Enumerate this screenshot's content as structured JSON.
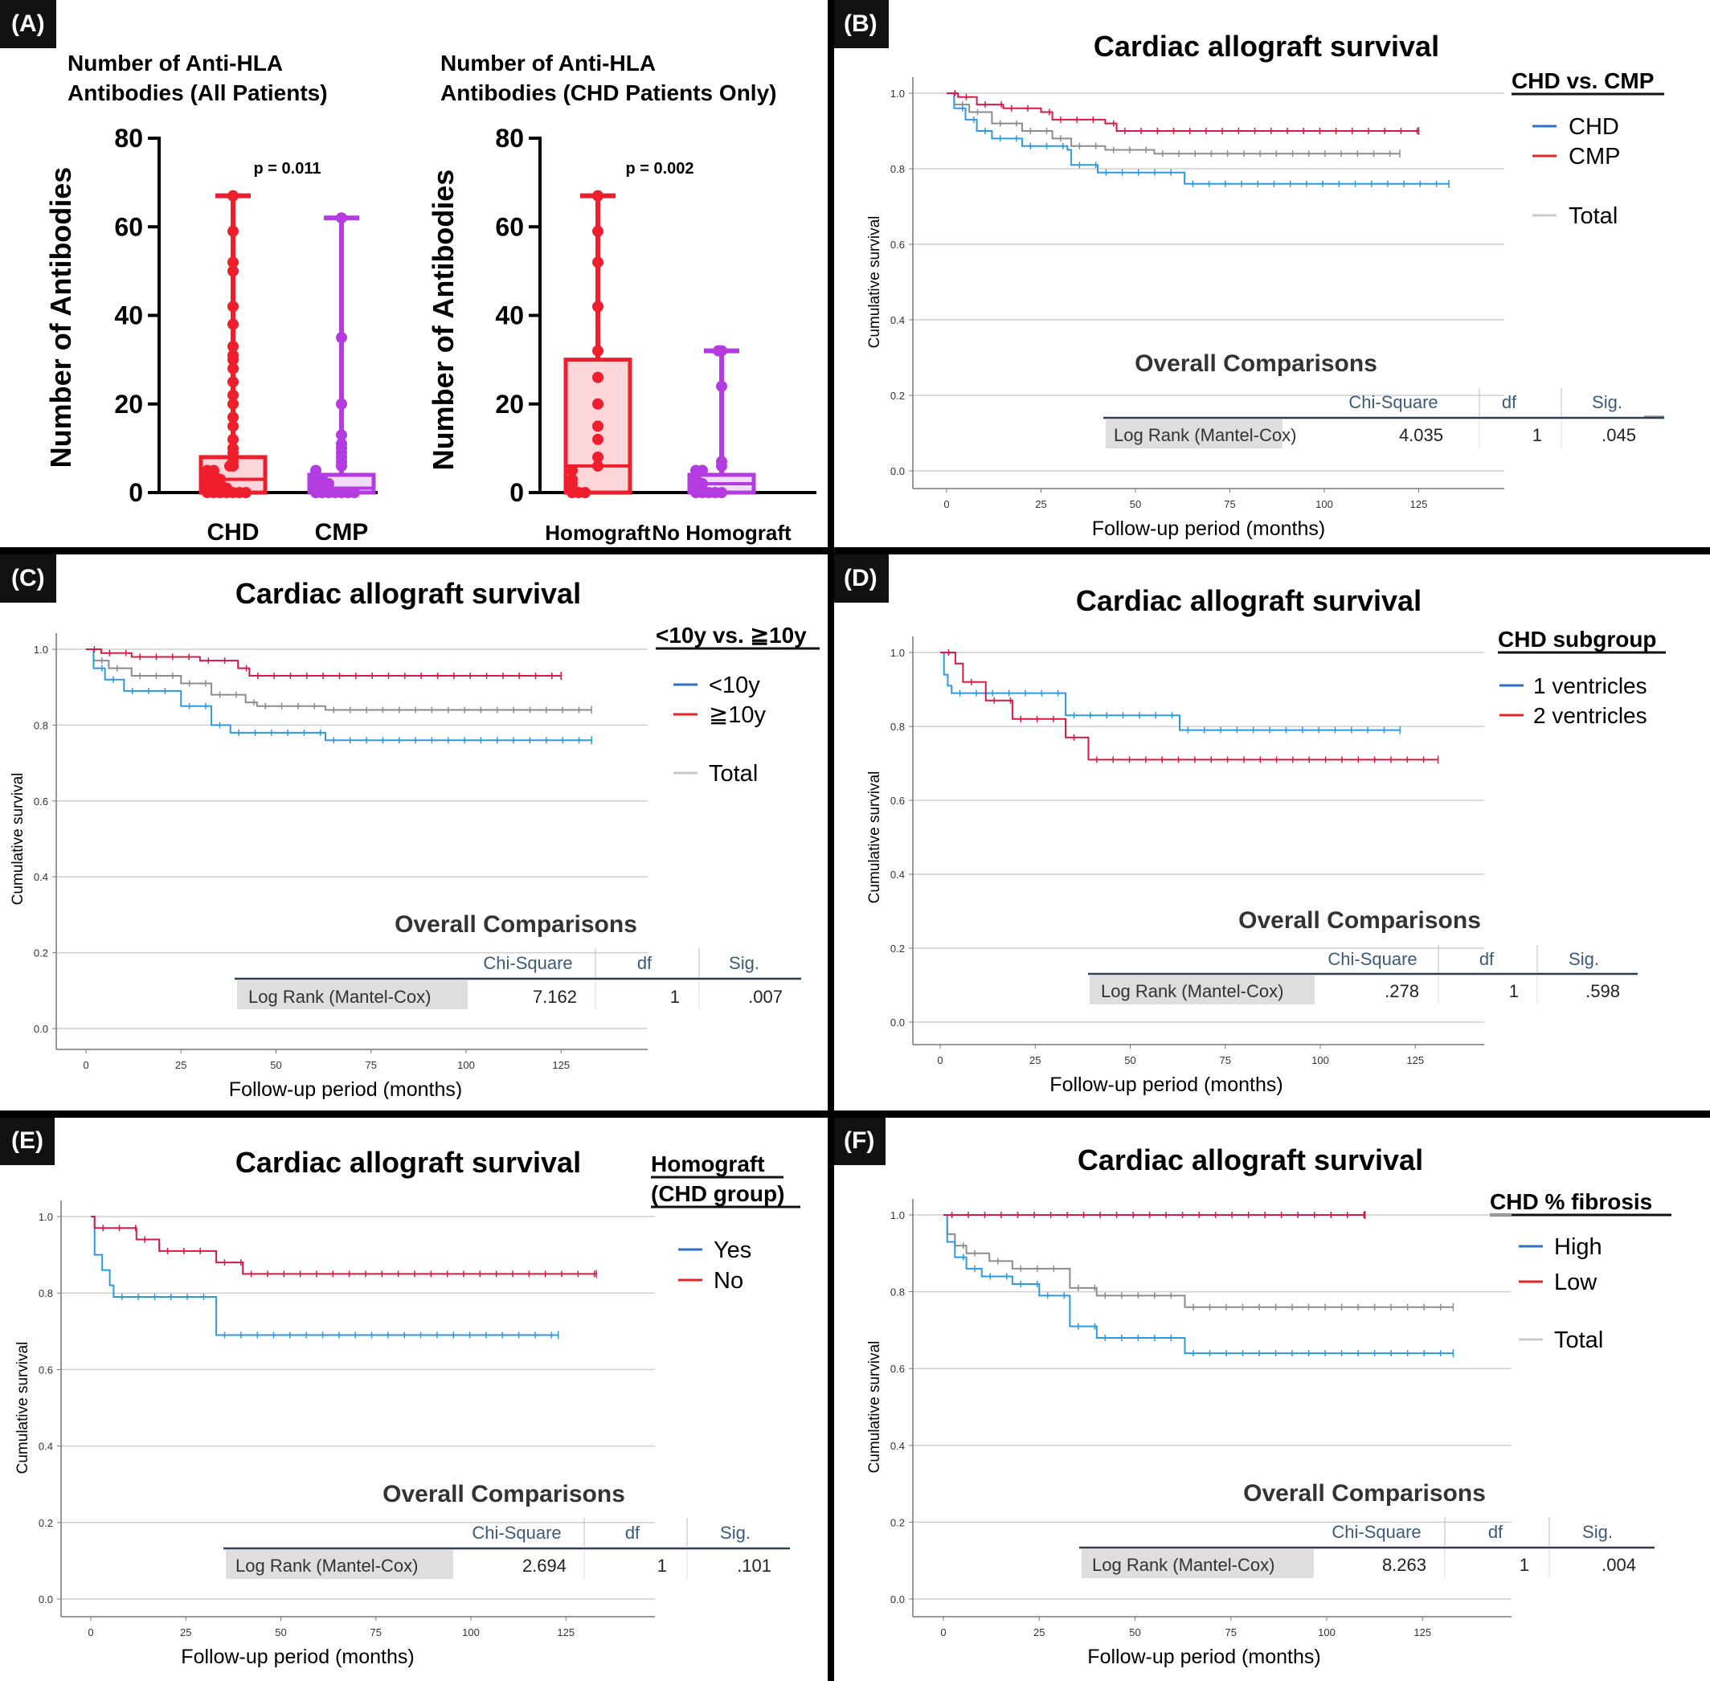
{
  "panel_a": {
    "label": "(A)",
    "left_title_line1": "Number of  Anti-HLA",
    "left_title_line2": "Antibodies (All Patients)",
    "right_title_line1": "Number of  Anti-HLA",
    "right_title_line2": "Antibodies (CHD Patients Only)",
    "ylabel": "Number of  Antibodies",
    "yticks": [
      "0",
      "20",
      "40",
      "60",
      "80"
    ]
  },
  "panel_b": {
    "label": "(B)",
    "title": "Cardiac allograft survival",
    "legend_title": "CHD vs. CMP",
    "legend": [
      "CHD",
      "CMP",
      "Total"
    ],
    "table_title": "Overall Comparisons",
    "table_headers": [
      "Chi-Square",
      "df",
      "Sig."
    ],
    "table_row": [
      "Log Rank (Mantel-Cox)",
      "4.035",
      "1",
      ".045"
    ]
  },
  "panel_c": {
    "label": "(C)",
    "title": "Cardiac allograft survival",
    "legend_title": "<10y vs. ≧10y",
    "legend": [
      "<10y",
      "≧10y",
      "Total"
    ],
    "table_title": "Overall Comparisons",
    "table_headers": [
      "Chi-Square",
      "df",
      "Sig."
    ],
    "table_row": [
      "Log Rank (Mantel-Cox)",
      "7.162",
      "1",
      ".007"
    ]
  },
  "panel_d": {
    "label": "(D)",
    "title": "Cardiac allograft survival",
    "legend_title": "CHD subgroup",
    "legend": [
      "1 ventricles",
      "2 ventricles"
    ],
    "table_title": "Overall Comparisons",
    "table_headers": [
      "Chi-Square",
      "df",
      "Sig."
    ],
    "table_row": [
      "Log Rank (Mantel-Cox)",
      ".278",
      "1",
      ".598"
    ]
  },
  "panel_e": {
    "label": "(E)",
    "title": "Cardiac allograft survival",
    "legend_title_line1": "Homograft",
    "legend_title_line2": "(CHD group)",
    "legend": [
      "Yes",
      "No"
    ],
    "table_title": "Overall Comparisons",
    "table_headers": [
      "Chi-Square",
      "df",
      "Sig."
    ],
    "table_row": [
      "Log Rank (Mantel-Cox)",
      "2.694",
      "1",
      ".101"
    ]
  },
  "panel_f": {
    "label": "(F)",
    "title": "Cardiac allograft survival",
    "legend_title": "CHD % fibrosis",
    "legend": [
      "High",
      "Low",
      "Total"
    ],
    "table_title": "Overall Comparisons",
    "table_headers": [
      "Chi-Square",
      "df",
      "Sig."
    ],
    "table_row": [
      "Log Rank (Mantel-Cox)",
      "8.263",
      "1",
      ".004"
    ]
  },
  "km_axes": {
    "ylabel": "Cumulative survival",
    "xlabel": "Follow-up period (months)",
    "yticks": [
      "0.0",
      "0.2",
      "0.4",
      "0.6",
      "0.8",
      "1.0"
    ],
    "xticks": [
      "0",
      "25",
      "50",
      "75",
      "100",
      "125"
    ]
  },
  "colors": {
    "red": "#ef1e2d",
    "purple": "#b43be0",
    "km_blue": "#2d9ae0",
    "km_red": "#d41a45",
    "km_gray": "#8c8c8c",
    "legend_blue": "#2d6fc9",
    "legend_red": "#e52424",
    "legend_gray": "#c9c9c9",
    "table_header_text": "#3d5a7a",
    "table_row_shade": "#dedede"
  },
  "chart_data": [
    {
      "type": "scatter",
      "panel": "A-left",
      "ylabel": "Number of  Antibodies",
      "ylim": [
        0,
        80
      ],
      "categories": [
        "CHD",
        "CMP"
      ],
      "annotation": "p = 0.011",
      "series": [
        {
          "name": "CHD",
          "values": [
            67,
            59,
            52,
            50,
            42,
            38,
            33,
            31,
            30,
            28,
            25,
            22,
            20,
            17,
            15,
            12,
            10,
            9,
            8,
            7,
            6,
            6,
            5,
            5,
            4,
            4,
            3,
            3,
            3,
            2,
            2,
            2,
            1,
            1,
            1,
            1,
            0,
            0,
            0,
            0,
            0,
            0,
            0
          ],
          "box": {
            "q1": 0,
            "median": 3,
            "q3": 8,
            "min": 0,
            "max": 67
          }
        },
        {
          "name": "CMP",
          "values": [
            62,
            35,
            20,
            13,
            11,
            10,
            9,
            8,
            7,
            6,
            5,
            4,
            3,
            3,
            2,
            2,
            2,
            1,
            1,
            1,
            0,
            0,
            0,
            0,
            0,
            0,
            0
          ],
          "box": {
            "q1": 0,
            "median": 1,
            "q3": 4,
            "min": 0,
            "max": 62
          }
        }
      ]
    },
    {
      "type": "scatter",
      "panel": "A-right",
      "ylabel": "Number of  Antibodies",
      "ylim": [
        0,
        80
      ],
      "categories": [
        "Homograft",
        "No Homograft"
      ],
      "annotation": "p = 0.002",
      "series": [
        {
          "name": "Homograft",
          "values": [
            67,
            59,
            52,
            42,
            32,
            26,
            20,
            15,
            12,
            8,
            6,
            5,
            3,
            2,
            1,
            0,
            0,
            0
          ],
          "box": {
            "q1": 0,
            "median": 6,
            "q3": 30,
            "min": 0,
            "max": 67
          }
        },
        {
          "name": "No Homograft",
          "values": [
            32,
            32,
            24,
            7,
            6,
            5,
            5,
            4,
            3,
            2,
            2,
            1,
            0,
            0,
            0,
            0,
            0
          ],
          "box": {
            "q1": 0,
            "median": 2,
            "q3": 4,
            "min": 0,
            "max": 32
          }
        }
      ]
    },
    {
      "type": "line",
      "panel": "B",
      "xlim": [
        0,
        150
      ],
      "ylim": [
        0,
        1
      ],
      "series": [
        {
          "name": "CHD",
          "steps": [
            [
              0,
              1.0
            ],
            [
              2,
              0.96
            ],
            [
              5,
              0.93
            ],
            [
              8,
              0.9
            ],
            [
              12,
              0.88
            ],
            [
              20,
              0.86
            ],
            [
              32,
              0.85
            ],
            [
              33,
              0.81
            ],
            [
              40,
              0.79
            ],
            [
              63,
              0.76
            ],
            [
              133,
              0.76
            ]
          ]
        },
        {
          "name": "CMP",
          "steps": [
            [
              0,
              1.0
            ],
            [
              3,
              0.99
            ],
            [
              8,
              0.97
            ],
            [
              15,
              0.96
            ],
            [
              25,
              0.95
            ],
            [
              28,
              0.93
            ],
            [
              42,
              0.92
            ],
            [
              45,
              0.9
            ],
            [
              125,
              0.9
            ]
          ]
        },
        {
          "name": "Total",
          "steps": [
            [
              0,
              1.0
            ],
            [
              2,
              0.97
            ],
            [
              6,
              0.95
            ],
            [
              12,
              0.92
            ],
            [
              20,
              0.9
            ],
            [
              28,
              0.88
            ],
            [
              33,
              0.86
            ],
            [
              42,
              0.85
            ],
            [
              55,
              0.84
            ],
            [
              120,
              0.84
            ]
          ]
        }
      ]
    },
    {
      "type": "line",
      "panel": "C",
      "xlim": [
        0,
        150
      ],
      "ylim": [
        0,
        1
      ],
      "series": [
        {
          "name": "<10y",
          "steps": [
            [
              0,
              1.0
            ],
            [
              2,
              0.95
            ],
            [
              5,
              0.92
            ],
            [
              10,
              0.89
            ],
            [
              25,
              0.85
            ],
            [
              33,
              0.8
            ],
            [
              38,
              0.78
            ],
            [
              63,
              0.76
            ],
            [
              133,
              0.76
            ]
          ]
        },
        {
          "name": "≧10y",
          "steps": [
            [
              0,
              1.0
            ],
            [
              4,
              0.99
            ],
            [
              12,
              0.98
            ],
            [
              30,
              0.97
            ],
            [
              40,
              0.95
            ],
            [
              43,
              0.93
            ],
            [
              125,
              0.93
            ]
          ]
        },
        {
          "name": "Total",
          "steps": [
            [
              0,
              1.0
            ],
            [
              2,
              0.97
            ],
            [
              6,
              0.95
            ],
            [
              12,
              0.93
            ],
            [
              25,
              0.91
            ],
            [
              33,
              0.88
            ],
            [
              42,
              0.86
            ],
            [
              45,
              0.85
            ],
            [
              63,
              0.84
            ],
            [
              133,
              0.84
            ]
          ]
        }
      ]
    },
    {
      "type": "line",
      "panel": "D",
      "xlim": [
        0,
        150
      ],
      "ylim": [
        0,
        1
      ],
      "series": [
        {
          "name": "1 ventricles",
          "steps": [
            [
              0,
              1.0
            ],
            [
              1,
              0.94
            ],
            [
              2,
              0.91
            ],
            [
              3,
              0.89
            ],
            [
              33,
              0.83
            ],
            [
              63,
              0.79
            ],
            [
              121,
              0.79
            ]
          ]
        },
        {
          "name": "2 ventricles",
          "steps": [
            [
              0,
              1.0
            ],
            [
              4,
              0.97
            ],
            [
              6,
              0.92
            ],
            [
              12,
              0.87
            ],
            [
              19,
              0.82
            ],
            [
              33,
              0.77
            ],
            [
              39,
              0.71
            ],
            [
              131,
              0.71
            ]
          ]
        }
      ]
    },
    {
      "type": "line",
      "panel": "E",
      "xlim": [
        0,
        150
      ],
      "ylim": [
        0,
        1
      ],
      "series": [
        {
          "name": "Yes",
          "steps": [
            [
              0,
              1.0
            ],
            [
              1,
              0.9
            ],
            [
              3,
              0.86
            ],
            [
              5,
              0.82
            ],
            [
              6,
              0.79
            ],
            [
              33,
              0.69
            ],
            [
              123,
              0.69
            ]
          ]
        },
        {
          "name": "No",
          "steps": [
            [
              0,
              1.0
            ],
            [
              1,
              0.97
            ],
            [
              12,
              0.94
            ],
            [
              18,
              0.91
            ],
            [
              33,
              0.88
            ],
            [
              40,
              0.85
            ],
            [
              133,
              0.85
            ]
          ]
        }
      ]
    },
    {
      "type": "line",
      "panel": "F",
      "xlim": [
        0,
        150
      ],
      "ylim": [
        0,
        1
      ],
      "series": [
        {
          "name": "High",
          "steps": [
            [
              0,
              1.0
            ],
            [
              1,
              0.93
            ],
            [
              3,
              0.89
            ],
            [
              6,
              0.86
            ],
            [
              10,
              0.84
            ],
            [
              18,
              0.82
            ],
            [
              25,
              0.79
            ],
            [
              33,
              0.71
            ],
            [
              40,
              0.68
            ],
            [
              63,
              0.64
            ],
            [
              133,
              0.64
            ]
          ]
        },
        {
          "name": "Low",
          "steps": [
            [
              0,
              1.0
            ],
            [
              110,
              1.0
            ]
          ]
        },
        {
          "name": "Total",
          "steps": [
            [
              0,
              1.0
            ],
            [
              1,
              0.95
            ],
            [
              3,
              0.92
            ],
            [
              6,
              0.9
            ],
            [
              12,
              0.88
            ],
            [
              18,
              0.86
            ],
            [
              33,
              0.81
            ],
            [
              40,
              0.79
            ],
            [
              63,
              0.76
            ],
            [
              133,
              0.76
            ]
          ]
        }
      ]
    }
  ]
}
